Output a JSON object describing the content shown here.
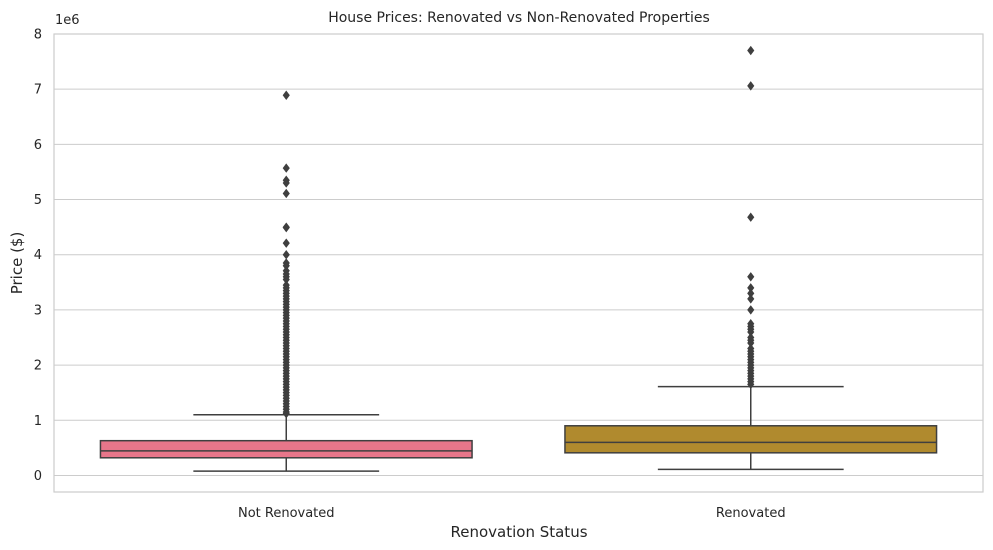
{
  "chart_data": {
    "type": "box",
    "title": "House Prices: Renovated vs Non-Renovated Properties",
    "xlabel": "Renovation Status",
    "ylabel": "Price ($)",
    "y_offset_label": "1e6",
    "y_scale_factor": 1000000,
    "ylim": [
      -300000,
      8000000
    ],
    "yticks": [
      0,
      1,
      2,
      3,
      4,
      5,
      6,
      7,
      8
    ],
    "grid": "y-major",
    "categories": [
      "Not Renovated",
      "Renovated"
    ],
    "boxes": [
      {
        "category": "Not Renovated",
        "color": "#e8768a",
        "whisker_low": 78000,
        "q1": 320000,
        "median": 445000,
        "q3": 630000,
        "whisker_high": 1100000,
        "outliers": [
          6890000,
          5570000,
          5350000,
          5300000,
          5110000,
          4500000,
          4490000,
          4210000,
          4000000,
          3850000,
          3800000,
          3710000,
          3650000,
          3600000,
          3550000,
          3450000,
          3400000,
          3350000,
          3300000,
          3250000,
          3200000,
          3150000,
          3100000,
          3050000,
          3000000,
          2950000,
          2900000,
          2850000,
          2800000,
          2750000,
          2700000,
          2650000,
          2600000,
          2550000,
          2500000,
          2450000,
          2400000,
          2350000,
          2300000,
          2250000,
          2200000,
          2150000,
          2100000,
          2050000,
          2000000,
          1950000,
          1900000,
          1850000,
          1800000,
          1750000,
          1700000,
          1650000,
          1600000,
          1550000,
          1500000,
          1450000,
          1400000,
          1350000,
          1300000,
          1250000,
          1200000,
          1150000,
          1120000
        ]
      },
      {
        "category": "Renovated",
        "color": "#b08a2e",
        "whisker_low": 110000,
        "q1": 410000,
        "median": 600000,
        "q3": 900000,
        "whisker_high": 1610000,
        "outliers": [
          7700000,
          7060000,
          4680000,
          3600000,
          3400000,
          3300000,
          3200000,
          3000000,
          2750000,
          2700000,
          2650000,
          2600000,
          2500000,
          2450000,
          2400000,
          2300000,
          2250000,
          2200000,
          2150000,
          2100000,
          2050000,
          2000000,
          1950000,
          1900000,
          1850000,
          1800000,
          1750000,
          1700000,
          1650000
        ]
      }
    ]
  }
}
